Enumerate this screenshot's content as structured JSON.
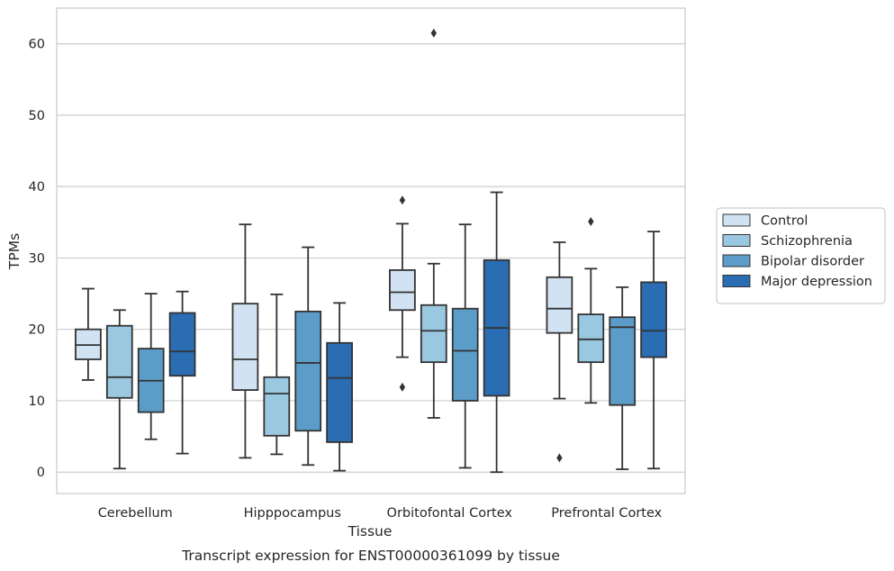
{
  "chart_data": {
    "type": "box",
    "title": "",
    "caption": "Transcript expression for ENST00000361099 by tissue",
    "xlabel": "Tissue",
    "ylabel": "TPMs",
    "ylim": [
      -3,
      65
    ],
    "yticks": [
      0,
      10,
      20,
      30,
      40,
      50,
      60
    ],
    "grid": "horizontal",
    "legend_position": "right",
    "categories": [
      "Cerebellum",
      "Hipppocampus",
      "Orbitofontal Cortex",
      "Prefrontal Cortex"
    ],
    "series": [
      {
        "name": "Control",
        "color": "#d1e2f2",
        "boxes": [
          {
            "whislo": 12.9,
            "q1": 15.8,
            "med": 17.8,
            "q3": 20.0,
            "whishi": 25.7,
            "fliers": []
          },
          {
            "whislo": 2.0,
            "q1": 11.5,
            "med": 15.8,
            "q3": 23.6,
            "whishi": 34.7,
            "fliers": []
          },
          {
            "whislo": 16.1,
            "q1": 22.7,
            "med": 25.2,
            "q3": 28.3,
            "whishi": 34.8,
            "fliers": [
              38.1,
              11.9
            ]
          },
          {
            "whislo": 10.3,
            "q1": 19.5,
            "med": 22.9,
            "q3": 27.3,
            "whishi": 32.2,
            "fliers": [
              2.0
            ]
          }
        ]
      },
      {
        "name": "Schizophrenia",
        "color": "#9ac8e0",
        "boxes": [
          {
            "whislo": 0.5,
            "q1": 10.4,
            "med": 13.3,
            "q3": 20.5,
            "whishi": 22.7,
            "fliers": []
          },
          {
            "whislo": 2.5,
            "q1": 5.1,
            "med": 11.0,
            "q3": 13.3,
            "whishi": 24.9,
            "fliers": []
          },
          {
            "whislo": 7.6,
            "q1": 15.4,
            "med": 19.8,
            "q3": 23.4,
            "whishi": 29.2,
            "fliers": [
              61.5
            ]
          },
          {
            "whislo": 9.7,
            "q1": 15.4,
            "med": 18.6,
            "q3": 22.1,
            "whishi": 28.5,
            "fliers": [
              35.1
            ]
          }
        ]
      },
      {
        "name": "Bipolar disorder",
        "color": "#5b9cc8",
        "boxes": [
          {
            "whislo": 4.6,
            "q1": 8.4,
            "med": 12.8,
            "q3": 17.3,
            "whishi": 25.0,
            "fliers": []
          },
          {
            "whislo": 1.0,
            "q1": 5.8,
            "med": 15.3,
            "q3": 22.5,
            "whishi": 31.5,
            "fliers": []
          },
          {
            "whislo": 0.6,
            "q1": 10.0,
            "med": 17.0,
            "q3": 22.9,
            "whishi": 34.7,
            "fliers": []
          },
          {
            "whislo": 0.4,
            "q1": 9.4,
            "med": 20.3,
            "q3": 21.7,
            "whishi": 25.9,
            "fliers": []
          }
        ]
      },
      {
        "name": "Major depression",
        "color": "#2a6db2",
        "boxes": [
          {
            "whislo": 2.6,
            "q1": 13.5,
            "med": 16.9,
            "q3": 22.3,
            "whishi": 25.3,
            "fliers": []
          },
          {
            "whislo": 0.2,
            "q1": 4.2,
            "med": 13.2,
            "q3": 18.1,
            "whishi": 23.7,
            "fliers": []
          },
          {
            "whislo": 0.0,
            "q1": 10.7,
            "med": 20.2,
            "q3": 29.7,
            "whishi": 39.2,
            "fliers": []
          },
          {
            "whislo": 0.5,
            "q1": 16.1,
            "med": 19.8,
            "q3": 26.6,
            "whishi": 33.7,
            "fliers": []
          }
        ]
      }
    ]
  }
}
